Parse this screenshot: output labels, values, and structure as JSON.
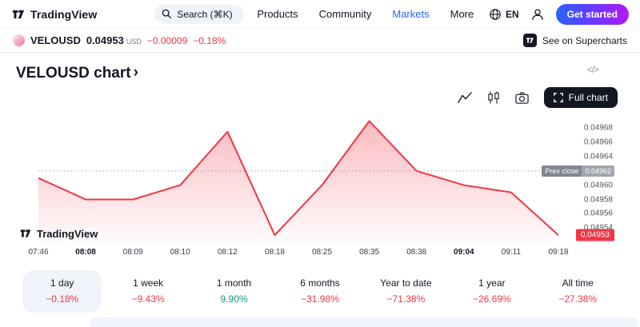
{
  "colors": {
    "accent_blue": "#2962ff",
    "red": "#f23645",
    "green": "#089981",
    "badge_gray": "#9598a1"
  },
  "header": {
    "logo_text": "TradingView",
    "search": {
      "placeholder": "Search (⌘K)"
    },
    "nav": [
      {
        "label": "Products",
        "active": false
      },
      {
        "label": "Community",
        "active": false
      },
      {
        "label": "Markets",
        "active": true
      },
      {
        "label": "More",
        "active": false
      }
    ],
    "language": "EN",
    "cta": "Get started"
  },
  "ticker": {
    "symbol": "VELOUSD",
    "price": "0.04953",
    "currency": "USD",
    "change_abs": "−0.00009",
    "change_pct": "−0.18%",
    "superchart_link": "See on Supercharts"
  },
  "page": {
    "title": "VELOUSD chart",
    "title_chevron": "›",
    "code_icon": "</>"
  },
  "toolbar": {
    "full_chart_label": "Full chart"
  },
  "chart_data": {
    "type": "area",
    "title": "VELOUSD intraday price",
    "x": [
      "07:46",
      "08:08",
      "08:09",
      "08:10",
      "08:12",
      "08:18",
      "08:25",
      "08:35",
      "08:38",
      "09:04",
      "09:11",
      "09:18"
    ],
    "values": [
      0.04961,
      0.04958,
      0.04958,
      0.0496,
      0.049675,
      0.04953,
      0.0496,
      0.04969,
      0.04962,
      0.0496,
      0.04959,
      0.04953
    ],
    "emphasized_x_labels": [
      "08:08",
      "09:04"
    ],
    "y_ticks": [
      0.04968,
      0.04966,
      0.04964,
      0.04962,
      0.0496,
      0.04958,
      0.04956,
      0.04954
    ],
    "ylim": [
      0.04952,
      0.049705
    ],
    "prev_close": {
      "label": "Prev close",
      "value": "0.04962"
    },
    "last_price": {
      "value": "0.04953"
    },
    "line_color": "#f23645",
    "grid": false,
    "watermark": "TradingView"
  },
  "periods": [
    {
      "label": "1 day",
      "change": "−0.18%",
      "direction": "down",
      "selected": true
    },
    {
      "label": "1 week",
      "change": "−9.43%",
      "direction": "down",
      "selected": false
    },
    {
      "label": "1 month",
      "change": "9.90%",
      "direction": "up",
      "selected": false
    },
    {
      "label": "6 months",
      "change": "−31.98%",
      "direction": "down",
      "selected": false
    },
    {
      "label": "Year to date",
      "change": "−71.38%",
      "direction": "down",
      "selected": false
    },
    {
      "label": "1 year",
      "change": "−26.69%",
      "direction": "down",
      "selected": false
    },
    {
      "label": "All time",
      "change": "−27.38%",
      "direction": "down",
      "selected": false
    }
  ]
}
